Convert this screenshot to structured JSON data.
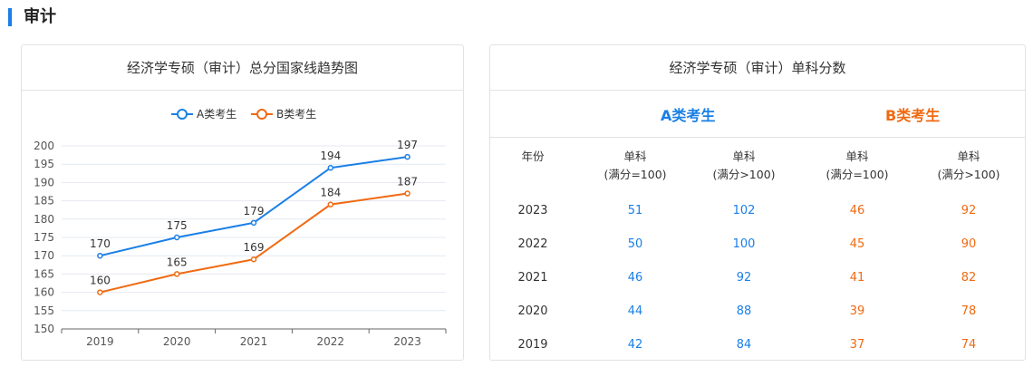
{
  "section": {
    "title": "审计"
  },
  "left_card": {
    "title": "经济学专硕（审计）总分国家线趋势图"
  },
  "chart_data": {
    "type": "line",
    "categories": [
      "2019",
      "2020",
      "2021",
      "2022",
      "2023"
    ],
    "series": [
      {
        "name": "A类考生",
        "values": [
          170,
          175,
          179,
          194,
          197
        ],
        "color": "#1a7fe6"
      },
      {
        "name": "B类考生",
        "values": [
          160,
          165,
          169,
          184,
          187
        ],
        "color": "#f06a12"
      }
    ],
    "ylim": [
      150,
      200
    ],
    "yticks": [
      150,
      155,
      160,
      165,
      170,
      175,
      180,
      185,
      190,
      195,
      200
    ],
    "data_labels": true,
    "legend": "top-center",
    "grid": true,
    "title": "",
    "xlabel": "",
    "ylabel": ""
  },
  "right_card": {
    "title": "经济学专硕（审计）单科分数",
    "group_a": "A类考生",
    "group_b": "B类考生",
    "col_year": "年份",
    "col_single_line1": "单科",
    "col_le100_line2": "(满分=100)",
    "col_gt100_line2": "(满分>100)",
    "rows": [
      {
        "year": "2023",
        "a100": "51",
        "a150": "102",
        "b100": "46",
        "b150": "92"
      },
      {
        "year": "2022",
        "a100": "50",
        "a150": "100",
        "b100": "45",
        "b150": "90"
      },
      {
        "year": "2021",
        "a100": "46",
        "a150": "92",
        "b100": "41",
        "b150": "82"
      },
      {
        "year": "2020",
        "a100": "44",
        "a150": "88",
        "b100": "39",
        "b150": "78"
      },
      {
        "year": "2019",
        "a100": "42",
        "a150": "84",
        "b100": "37",
        "b150": "74"
      }
    ]
  },
  "colors": {
    "accent": "#1a7fe6",
    "a_series": "#1a7fe6",
    "b_series": "#f06a12"
  }
}
